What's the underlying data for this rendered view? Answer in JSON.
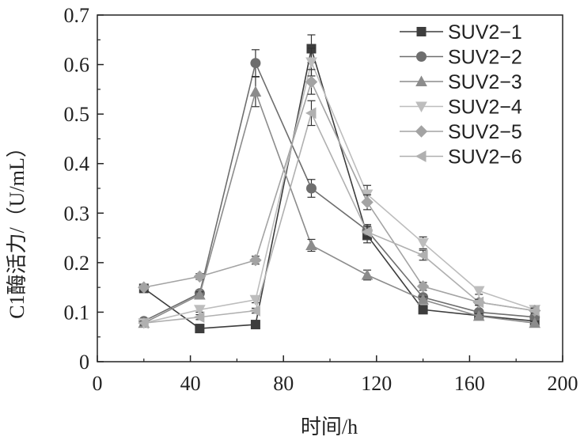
{
  "chart_data": {
    "type": "line",
    "xlabel": "时间/h",
    "ylabel": "C1酶活力/（U/mL）",
    "xlim": [
      0,
      200
    ],
    "ylim": [
      0,
      0.7
    ],
    "xticks": [
      0,
      40,
      80,
      120,
      160,
      200
    ],
    "yticks": [
      0,
      0.1,
      0.2,
      0.3,
      0.4,
      0.5,
      0.6,
      0.7
    ],
    "xtick_labels": [
      "0",
      "40",
      "80",
      "120",
      "160",
      "200"
    ],
    "ytick_labels": [
      "0",
      "0.1",
      "0.2",
      "0.3",
      "0.4",
      "0.5",
      "0.6",
      "0.7"
    ],
    "grid": false,
    "legend_position": "top-right",
    "x": [
      20,
      44,
      68,
      92,
      116,
      140,
      164,
      188
    ],
    "series": [
      {
        "name": "SUV2−1",
        "marker": "square",
        "color": "#3d3d3d",
        "values": [
          0.148,
          0.067,
          0.075,
          0.632,
          0.255,
          0.105,
          0.093,
          0.082
        ],
        "errors": [
          0.005,
          0.004,
          0.005,
          0.028,
          0.015,
          0.006,
          0.005,
          0.004
        ]
      },
      {
        "name": "SUV2−2",
        "marker": "circle",
        "color": "#6e6e6e",
        "values": [
          0.082,
          0.138,
          0.603,
          0.35,
          0.265,
          0.13,
          0.1,
          0.09
        ],
        "errors": [
          0.004,
          0.006,
          0.027,
          0.018,
          0.012,
          0.006,
          0.005,
          0.004
        ]
      },
      {
        "name": "SUV2−3",
        "marker": "triangle-up",
        "color": "#8c8c8c",
        "values": [
          0.078,
          0.135,
          0.545,
          0.235,
          0.175,
          0.125,
          0.092,
          0.078
        ],
        "errors": [
          0.004,
          0.006,
          0.03,
          0.012,
          0.01,
          0.006,
          0.005,
          0.004
        ]
      },
      {
        "name": "SUV2−4",
        "marker": "triangle-down",
        "color": "#bdbdbd",
        "values": [
          0.078,
          0.105,
          0.125,
          0.605,
          0.338,
          0.24,
          0.143,
          0.105
        ],
        "errors": [
          0.004,
          0.005,
          0.006,
          0.028,
          0.018,
          0.012,
          0.007,
          0.005
        ]
      },
      {
        "name": "SUV2−5",
        "marker": "diamond",
        "color": "#a3a3a3",
        "values": [
          0.15,
          0.172,
          0.205,
          0.565,
          0.322,
          0.152,
          0.12,
          0.103
        ],
        "errors": [
          0.005,
          0.006,
          0.008,
          0.025,
          0.015,
          0.008,
          0.006,
          0.005
        ]
      },
      {
        "name": "SUV2−6",
        "marker": "triangle-left",
        "color": "#b0b0b0",
        "values": [
          0.078,
          0.09,
          0.103,
          0.502,
          0.262,
          0.215,
          0.12,
          0.103
        ],
        "errors": [
          0.004,
          0.005,
          0.005,
          0.025,
          0.012,
          0.01,
          0.006,
          0.005
        ]
      }
    ]
  }
}
